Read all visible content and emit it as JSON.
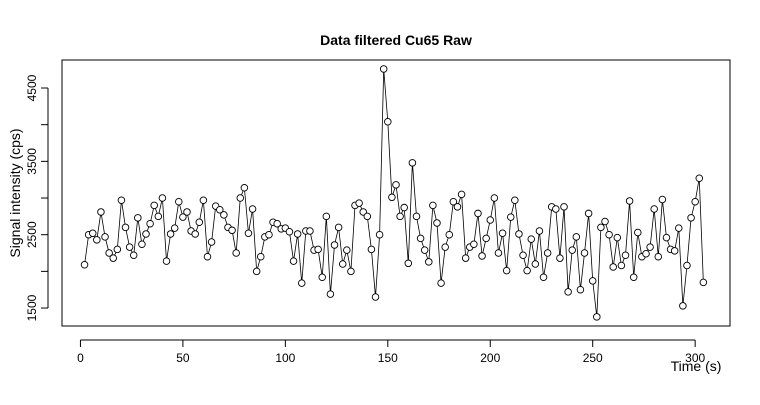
{
  "chart_data": {
    "type": "line",
    "title": "Data filtered Cu65 Raw",
    "x_label": "Time (s)",
    "y_label": "Signal intensity (cps)",
    "x": [
      2,
      4,
      6,
      8,
      10,
      12,
      14,
      16,
      18,
      20,
      22,
      24,
      26,
      28,
      30,
      32,
      34,
      36,
      38,
      40,
      42,
      44,
      46,
      48,
      50,
      52,
      54,
      56,
      58,
      60,
      62,
      64,
      66,
      68,
      70,
      72,
      74,
      76,
      78,
      80,
      82,
      84,
      86,
      88,
      90,
      92,
      94,
      96,
      98,
      100,
      102,
      104,
      106,
      108,
      110,
      112,
      114,
      116,
      118,
      120,
      122,
      124,
      126,
      128,
      130,
      132,
      134,
      136,
      138,
      140,
      142,
      144,
      146,
      148,
      150,
      152,
      154,
      156,
      158,
      160,
      162,
      164,
      166,
      168,
      170,
      172,
      174,
      176,
      178,
      180,
      182,
      184,
      186,
      188,
      190,
      192,
      194,
      196,
      198,
      200,
      202,
      204,
      206,
      208,
      210,
      212,
      214,
      216,
      218,
      220,
      222,
      224,
      226,
      228,
      230,
      232,
      234,
      236,
      238,
      240,
      242,
      244,
      246,
      248,
      250,
      252,
      254,
      256,
      258,
      260,
      262,
      264,
      266,
      268,
      270,
      272,
      274,
      276,
      278,
      280,
      282,
      284,
      286,
      288,
      290,
      292,
      294,
      296,
      298,
      300,
      302,
      304
    ],
    "series": [
      {
        "name": "Cu65",
        "color": "#000000",
        "values": [
          2090,
          2500,
          2520,
          2430,
          2810,
          2470,
          2250,
          2180,
          2300,
          2970,
          2600,
          2330,
          2220,
          2730,
          2370,
          2510,
          2650,
          2900,
          2750,
          3000,
          2140,
          2510,
          2590,
          2950,
          2740,
          2810,
          2550,
          2510,
          2670,
          2970,
          2200,
          2400,
          2890,
          2840,
          2770,
          2600,
          2560,
          2250,
          3000,
          3140,
          2520,
          2850,
          2000,
          2200,
          2470,
          2500,
          2670,
          2650,
          2580,
          2590,
          2540,
          2140,
          2510,
          1840,
          2550,
          2550,
          2290,
          2300,
          1920,
          2750,
          1690,
          2360,
          2600,
          2100,
          2290,
          2000,
          2900,
          2930,
          2810,
          2750,
          2300,
          1650,
          2500,
          4760,
          4040,
          3010,
          3180,
          2750,
          2870,
          2110,
          3480,
          2750,
          2450,
          2290,
          2130,
          2900,
          2660,
          1840,
          2330,
          2500,
          2950,
          2880,
          3050,
          2180,
          2330,
          2370,
          2790,
          2210,
          2450,
          2700,
          3000,
          2250,
          2520,
          2010,
          2740,
          2970,
          2510,
          2220,
          2010,
          2440,
          2100,
          2550,
          1920,
          2250,
          2880,
          2850,
          2180,
          2880,
          1720,
          2290,
          2470,
          1750,
          2250,
          2790,
          1870,
          1380,
          2600,
          2680,
          2500,
          2060,
          2460,
          2080,
          2220,
          2960,
          1920,
          2530,
          2200,
          2240,
          2330,
          2850,
          2200,
          2980,
          2460,
          2300,
          2280,
          2590,
          1530,
          2080,
          2730,
          2950,
          3270,
          1850
        ]
      }
    ],
    "xlim": [
      -9,
      317
    ],
    "ylim": [
      1255,
      4882
    ],
    "xticks": [
      0,
      50,
      100,
      150,
      200,
      250,
      300
    ],
    "yticks": [
      1500,
      2500,
      3500,
      4500
    ],
    "yminor": [
      2000,
      3000,
      4000
    ]
  }
}
